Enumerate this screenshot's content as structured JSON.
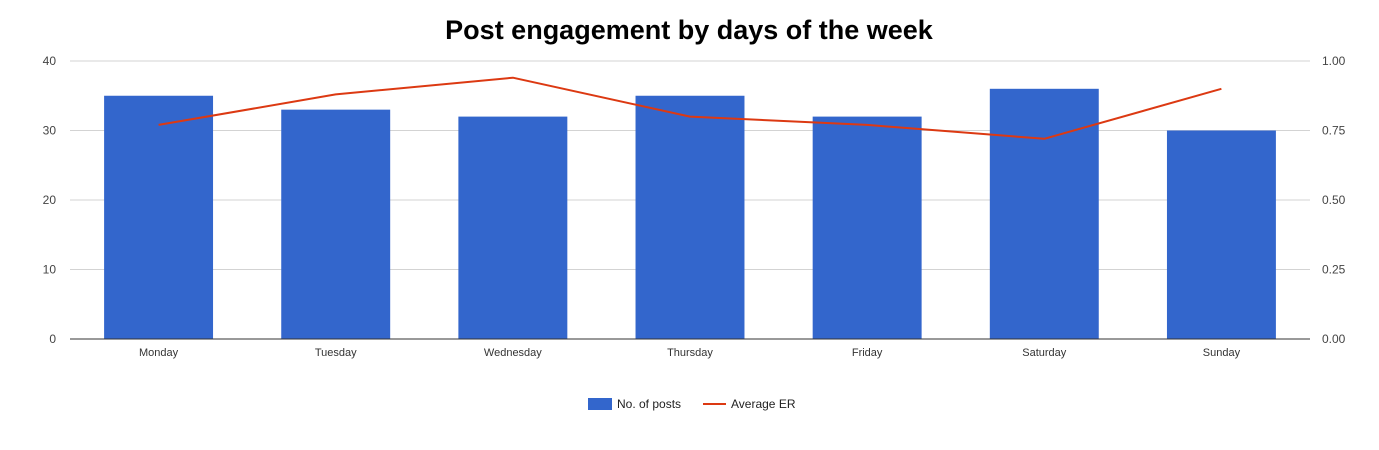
{
  "chart_data": {
    "type": "bar",
    "title": "Post engagement by days of the week",
    "categories": [
      "Monday",
      "Tuesday",
      "Wednesday",
      "Thursday",
      "Friday",
      "Saturday",
      "Sunday"
    ],
    "series": [
      {
        "name": "No. of posts",
        "type": "bar",
        "axis": "left",
        "color": "#3366cc",
        "values": [
          35,
          33,
          32,
          35,
          32,
          36,
          30
        ]
      },
      {
        "name": "Average ER",
        "type": "line",
        "axis": "right",
        "color": "#dc3912",
        "values": [
          0.77,
          0.88,
          0.94,
          0.8,
          0.77,
          0.72,
          0.9
        ]
      }
    ],
    "ylim_left": [
      0,
      40
    ],
    "yticks_left": [
      "0",
      "10",
      "20",
      "30",
      "40"
    ],
    "ylim_right": [
      0,
      1
    ],
    "yticks_right": [
      "0.00",
      "0.25",
      "0.50",
      "0.75",
      "1.00"
    ],
    "grid": true,
    "legend_position": "bottom"
  }
}
